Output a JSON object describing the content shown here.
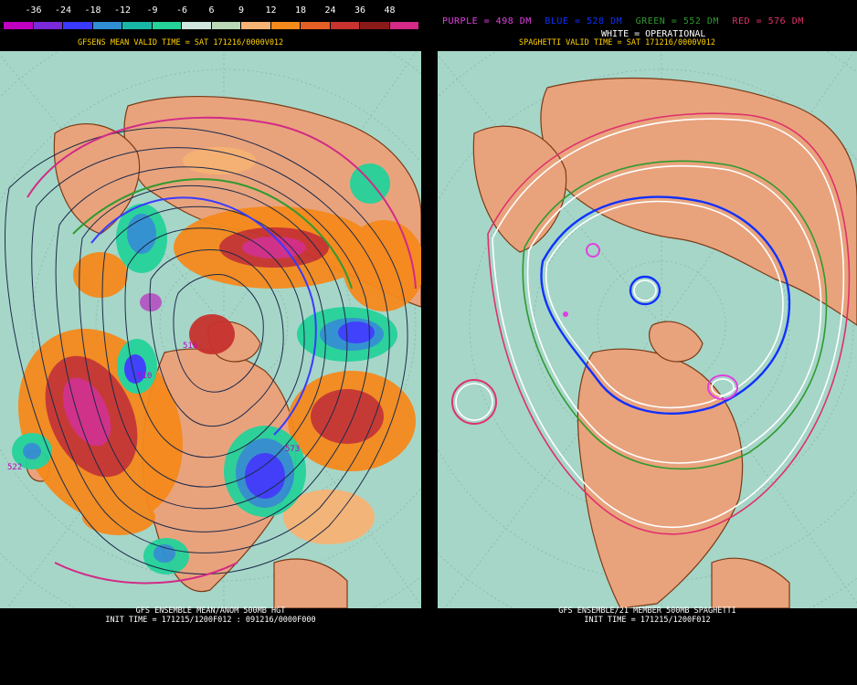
{
  "colorbar": {
    "labels": [
      "-36",
      "-24",
      "-18",
      "-12",
      "-9",
      "-6",
      "6",
      "9",
      "12",
      "18",
      "24",
      "36",
      "48"
    ],
    "colors": [
      "#c000c0",
      "#7a2ad8",
      "#3a3aff",
      "#2f8fd2",
      "#1ab6a5",
      "#24d29a",
      "#cfe6df",
      "#b9d9b6",
      "#f6b374",
      "#f58a1c",
      "#e35f24",
      "#c8322f",
      "#8a1a1a",
      "#d22a86"
    ]
  },
  "left": {
    "title": "GFSENS MEAN VALID TIME = SAT 171216/0000V012",
    "footer_line1": "GFS ENSEMBLE MEAN/ANOM 500MB HGT",
    "footer_line2": "INIT TIME = 171215/1200F012 : 091216/0000F000",
    "contour_labels": [
      "573",
      "516",
      "510",
      "522"
    ]
  },
  "right": {
    "title": "SPAGHETTI VALID TIME = SAT 171216/0000V012",
    "legend": {
      "purple": "PURPLE = 498 DM",
      "blue": "BLUE = 528 DM",
      "green": "GREEN = 552 DM",
      "red": "RED = 576 DM"
    },
    "operational": "WHITE = OPERATIONAL",
    "footer_line1": "GFS ENSEMBLE/21 MEMBER 500MB SPAGHETTI",
    "footer_line2": "INIT TIME = 171215/1200F012"
  },
  "colors": {
    "ocean": "#a6d6c8",
    "land": "#e8a37d",
    "coast": "#7a3a16",
    "title_yellow": "#ffd200",
    "purple": "#e040e0",
    "blue": "#1030ff",
    "green": "#2f9a2f",
    "red": "#e0306a"
  }
}
